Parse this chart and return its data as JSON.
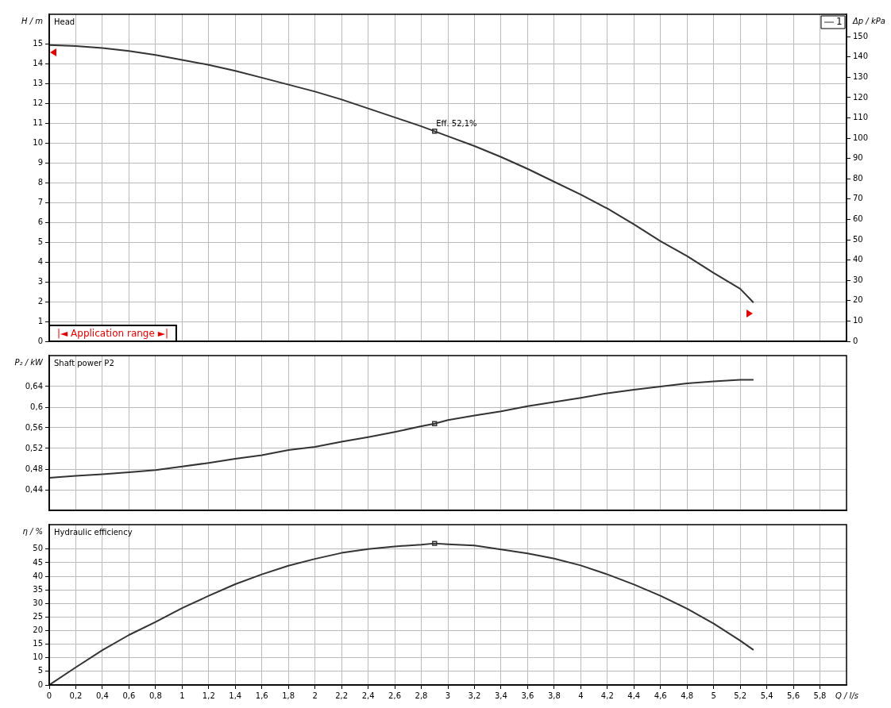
{
  "chart_data": [
    {
      "type": "line",
      "title": "Head",
      "ylabel": "H / m",
      "y2label": "Δp / kPa",
      "legend": "top right",
      "grid": true,
      "marker": "none",
      "line_style": "solid",
      "tick_labels": "y",
      "xlim": [
        0,
        6
      ],
      "xticks": [
        {
          "value": 0,
          "label": null
        },
        {
          "value": 0.2,
          "label": null
        },
        {
          "value": 0.4,
          "label": null
        },
        {
          "value": 0.6,
          "label": null
        },
        {
          "value": 0.8,
          "label": null
        },
        {
          "value": 1,
          "label": null
        },
        {
          "value": 1.2,
          "label": null
        },
        {
          "value": 1.4,
          "label": null
        },
        {
          "value": 1.6,
          "label": null
        },
        {
          "value": 1.8,
          "label": null
        },
        {
          "value": 2,
          "label": null
        },
        {
          "value": 2.2,
          "label": null
        },
        {
          "value": 2.4,
          "label": null
        },
        {
          "value": 2.6,
          "label": null
        },
        {
          "value": 2.8,
          "label": null
        },
        {
          "value": 3,
          "label": null
        },
        {
          "value": 3.2,
          "label": null
        },
        {
          "value": 3.4,
          "label": null
        },
        {
          "value": 3.6,
          "label": null
        },
        {
          "value": 3.8,
          "label": null
        },
        {
          "value": 4,
          "label": null
        },
        {
          "value": 4.2,
          "label": null
        },
        {
          "value": 4.4,
          "label": null
        },
        {
          "value": 4.6,
          "label": null
        },
        {
          "value": 4.8,
          "label": null
        },
        {
          "value": 5,
          "label": null
        },
        {
          "value": 5.2,
          "label": null
        },
        {
          "value": 5.4,
          "label": null
        },
        {
          "value": 5.6,
          "label": null
        },
        {
          "value": 5.8,
          "label": null
        }
      ],
      "ylim": [
        0,
        16.5
      ],
      "yticks": [
        0,
        1,
        2,
        3,
        4,
        5,
        6,
        7,
        8,
        9,
        10,
        11,
        12,
        13,
        14,
        15
      ],
      "y2lim": [
        0,
        161
      ],
      "y2ticks": [
        0,
        10,
        20,
        30,
        40,
        50,
        60,
        70,
        80,
        90,
        100,
        110,
        120,
        130,
        140,
        150
      ],
      "annotations": [
        {
          "text": "Eff. 52,1%",
          "x": 2.9,
          "y": 10.6
        },
        "|◄ Application range ►|"
      ],
      "series": [
        {
          "name": "1",
          "color": "#333333",
          "x": [
            0,
            0.2,
            0.4,
            0.6,
            0.8,
            1,
            1.2,
            1.4,
            1.6,
            1.8,
            2,
            2.2,
            2.4,
            2.6,
            2.8,
            2.9,
            3,
            3.2,
            3.4,
            3.6,
            3.8,
            4,
            4.2,
            4.4,
            4.6,
            4.8,
            5,
            5.2,
            5.3
          ],
          "values": [
            14.95,
            14.9,
            14.8,
            14.65,
            14.45,
            14.2,
            13.95,
            13.65,
            13.3,
            12.95,
            12.6,
            12.2,
            11.75,
            11.3,
            10.85,
            10.6,
            10.35,
            9.85,
            9.3,
            8.7,
            8.05,
            7.4,
            6.7,
            5.9,
            5.05,
            4.3,
            3.45,
            2.65,
            1.95
          ]
        },
        {
          "type": "scatter",
          "marker": "square",
          "color": "#333333",
          "x": [
            2.9
          ],
          "values": [
            10.6
          ]
        }
      ]
    },
    {
      "type": "line",
      "title": "Shaft power P2",
      "ylabel": "P₂ / kW",
      "grid": true,
      "marker": "none",
      "line_style": "solid",
      "tick_labels": "y",
      "legend": false,
      "xlim": [
        0,
        6
      ],
      "xticks": [
        {
          "value": 0,
          "label": null
        },
        {
          "value": 0.2,
          "label": null
        },
        {
          "value": 0.4,
          "label": null
        },
        {
          "value": 0.6,
          "label": null
        },
        {
          "value": 0.8,
          "label": null
        },
        {
          "value": 1,
          "label": null
        },
        {
          "value": 1.2,
          "label": null
        },
        {
          "value": 1.4,
          "label": null
        },
        {
          "value": 1.6,
          "label": null
        },
        {
          "value": 1.8,
          "label": null
        },
        {
          "value": 2,
          "label": null
        },
        {
          "value": 2.2,
          "label": null
        },
        {
          "value": 2.4,
          "label": null
        },
        {
          "value": 2.6,
          "label": null
        },
        {
          "value": 2.8,
          "label": null
        },
        {
          "value": 3,
          "label": null
        },
        {
          "value": 3.2,
          "label": null
        },
        {
          "value": 3.4,
          "label": null
        },
        {
          "value": 3.6,
          "label": null
        },
        {
          "value": 3.8,
          "label": null
        },
        {
          "value": 4,
          "label": null
        },
        {
          "value": 4.2,
          "label": null
        },
        {
          "value": 4.4,
          "label": null
        },
        {
          "value": 4.6,
          "label": null
        },
        {
          "value": 4.8,
          "label": null
        },
        {
          "value": 5,
          "label": null
        },
        {
          "value": 5.2,
          "label": null
        },
        {
          "value": 5.4,
          "label": null
        },
        {
          "value": 5.6,
          "label": null
        },
        {
          "value": 5.8,
          "label": null
        }
      ],
      "ylim": [
        0.4,
        0.7
      ],
      "yticks": [
        {
          "value": 0.44,
          "label": "0,44"
        },
        {
          "value": 0.48,
          "label": "0,48"
        },
        {
          "value": 0.52,
          "label": "0,52"
        },
        {
          "value": 0.56,
          "label": "0,56"
        },
        {
          "value": 0.6,
          "label": "0,6"
        },
        {
          "value": 0.64,
          "label": "0,64"
        }
      ],
      "series": [
        {
          "color": "#333333",
          "x": [
            0,
            0.2,
            0.4,
            0.6,
            0.8,
            1,
            1.2,
            1.4,
            1.6,
            1.8,
            2,
            2.2,
            2.4,
            2.6,
            2.8,
            2.9,
            3,
            3.2,
            3.4,
            3.6,
            3.8,
            4,
            4.2,
            4.4,
            4.6,
            4.8,
            5,
            5.2,
            5.3
          ],
          "values": [
            0.463,
            0.467,
            0.47,
            0.474,
            0.478,
            0.485,
            0.492,
            0.5,
            0.507,
            0.517,
            0.523,
            0.533,
            0.542,
            0.552,
            0.563,
            0.568,
            0.575,
            0.584,
            0.592,
            0.602,
            0.61,
            0.618,
            0.627,
            0.634,
            0.64,
            0.646,
            0.65,
            0.653,
            0.653
          ]
        },
        {
          "type": "scatter",
          "marker": "square",
          "color": "#333333",
          "x": [
            2.9
          ],
          "values": [
            0.568
          ]
        }
      ]
    },
    {
      "type": "line",
      "title": "Hydraulic efficiency",
      "ylabel": "η / %",
      "xlabel": "Q / l/s",
      "grid": true,
      "marker": "none",
      "line_style": "solid",
      "legend": false,
      "xlim": [
        0,
        6
      ],
      "xticks": [
        0,
        {
          "value": 0.2,
          "label": "0,2"
        },
        {
          "value": 0.4,
          "label": "0,4"
        },
        {
          "value": 0.6,
          "label": "0,6"
        },
        {
          "value": 0.8,
          "label": "0,8"
        },
        1,
        {
          "value": 1.2,
          "label": "1,2"
        },
        {
          "value": 1.4,
          "label": "1,4"
        },
        {
          "value": 1.6,
          "label": "1,6"
        },
        {
          "value": 1.8,
          "label": "1,8"
        },
        2,
        {
          "value": 2.2,
          "label": "2,2"
        },
        {
          "value": 2.4,
          "label": "2,4"
        },
        {
          "value": 2.6,
          "label": "2,6"
        },
        {
          "value": 2.8,
          "label": "2,8"
        },
        3,
        {
          "value": 3.2,
          "label": "3,2"
        },
        {
          "value": 3.4,
          "label": "3,4"
        },
        {
          "value": 3.6,
          "label": "3,6"
        },
        {
          "value": 3.8,
          "label": "3,8"
        },
        4,
        {
          "value": 4.2,
          "label": "4,2"
        },
        {
          "value": 4.4,
          "label": "4,4"
        },
        {
          "value": 4.6,
          "label": "4,6"
        },
        {
          "value": 4.8,
          "label": "4,8"
        },
        5,
        {
          "value": 5.2,
          "label": "5,2"
        },
        {
          "value": 5.4,
          "label": "5,4"
        },
        {
          "value": 5.6,
          "label": "5,6"
        },
        {
          "value": 5.8,
          "label": "5,8"
        }
      ],
      "ylim": [
        0,
        59
      ],
      "yticks": [
        0,
        5,
        10,
        15,
        20,
        25,
        30,
        35,
        40,
        45,
        50
      ],
      "series": [
        {
          "color": "#333333",
          "x": [
            0,
            0.2,
            0.4,
            0.6,
            0.8,
            1,
            1.2,
            1.4,
            1.6,
            1.8,
            2,
            2.2,
            2.4,
            2.6,
            2.8,
            2.9,
            3,
            3.2,
            3.4,
            3.6,
            3.8,
            4,
            4.2,
            4.4,
            4.6,
            4.8,
            5,
            5.2,
            5.3
          ],
          "values": [
            0,
            6.5,
            12.8,
            18.4,
            23.2,
            28.3,
            32.8,
            37.1,
            40.7,
            43.9,
            46.4,
            48.6,
            50,
            51,
            51.6,
            52.1,
            51.8,
            51.3,
            49.9,
            48.4,
            46.5,
            44,
            40.7,
            37,
            32.8,
            28.1,
            22.6,
            16.3,
            12.9
          ]
        },
        {
          "type": "scatter",
          "marker": "square",
          "color": "#333333",
          "x": [
            2.9
          ],
          "values": [
            52.1
          ]
        }
      ]
    }
  ]
}
